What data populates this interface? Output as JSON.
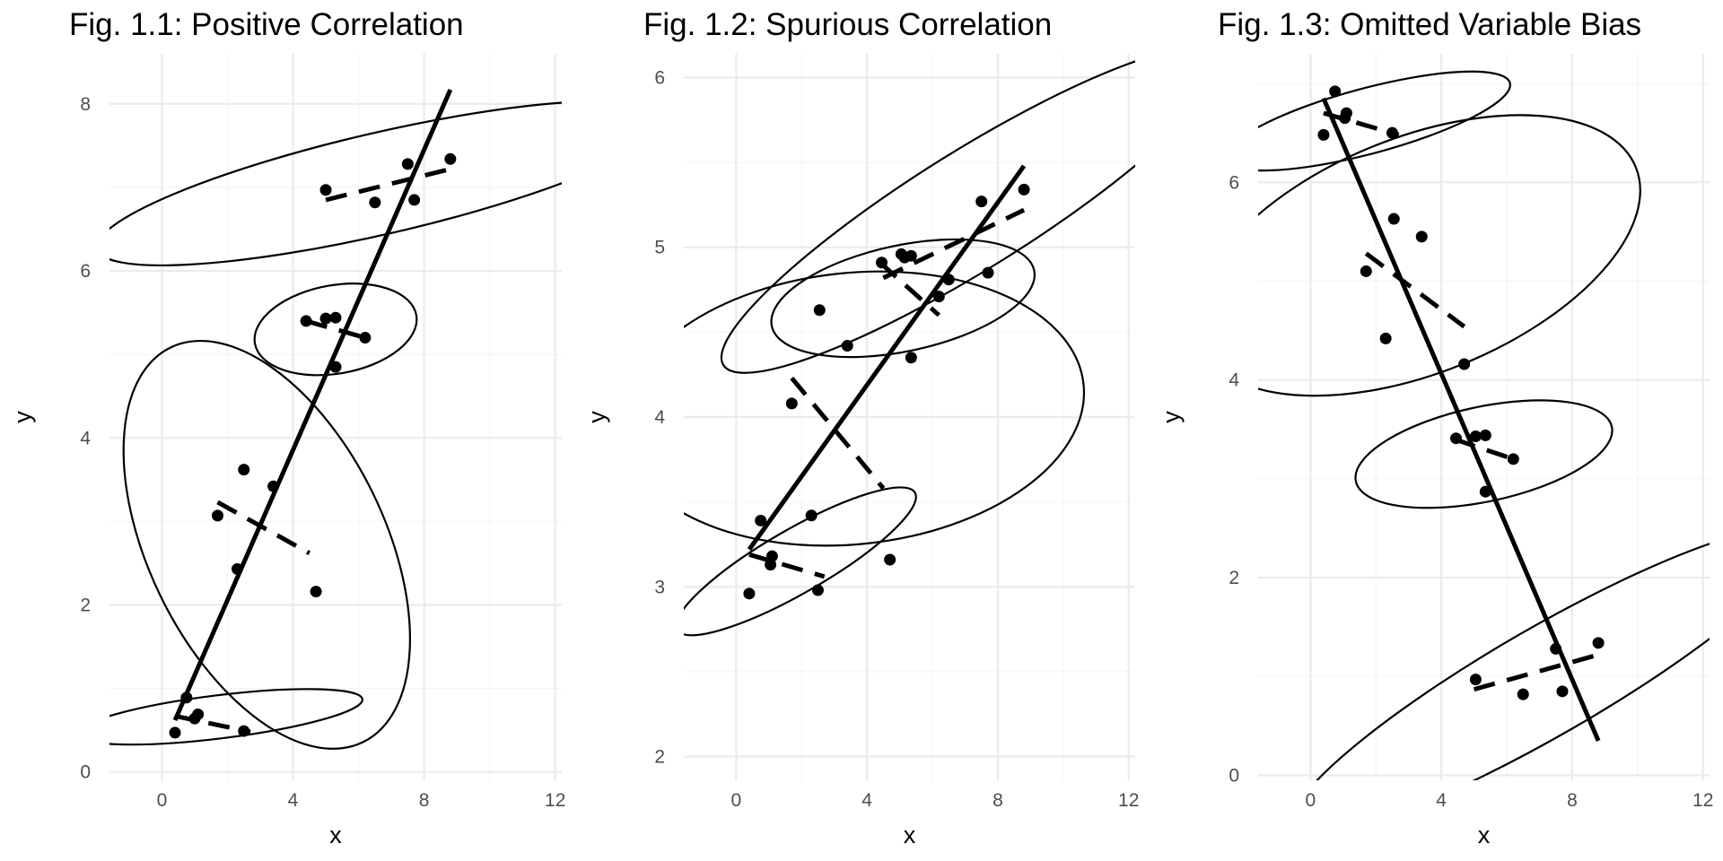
{
  "colors": {
    "ink": "#000000",
    "tick_text": "#4d4d4d",
    "grid_major": "#ebebeb",
    "grid_minor": "#f4f4f4",
    "background": "#ffffff"
  },
  "chart_data": [
    {
      "type": "scatter",
      "title": "Fig. 1.1: Positive Correlation",
      "xlabel": "x",
      "ylabel": "y",
      "xlim": [
        -1.6,
        12.2
      ],
      "ylim": [
        -0.1,
        8.6
      ],
      "xticks": [
        0,
        4,
        8,
        12
      ],
      "yticks": [
        0,
        2,
        4,
        6,
        8
      ],
      "grid": true,
      "points": [
        [
          0.4,
          0.47
        ],
        [
          0.75,
          0.89
        ],
        [
          1.1,
          0.69
        ],
        [
          1.0,
          0.64
        ],
        [
          2.5,
          0.49
        ],
        [
          1.7,
          3.07
        ],
        [
          2.3,
          2.43
        ],
        [
          2.5,
          3.62
        ],
        [
          3.4,
          3.42
        ],
        [
          4.7,
          2.16
        ],
        [
          4.4,
          5.4
        ],
        [
          5.0,
          5.43
        ],
        [
          5.3,
          5.44
        ],
        [
          5.3,
          4.85
        ],
        [
          6.2,
          5.2
        ],
        [
          5.0,
          6.97
        ],
        [
          6.5,
          6.82
        ],
        [
          7.5,
          7.28
        ],
        [
          7.7,
          6.85
        ],
        [
          8.8,
          7.34
        ]
      ],
      "fit_all": [
        [
          0.4,
          0.62
        ],
        [
          8.8,
          8.17
        ]
      ],
      "group_fits": [
        [
          [
            0.4,
            0.67
          ],
          [
            2.7,
            0.48
          ]
        ],
        [
          [
            1.7,
            3.23
          ],
          [
            4.5,
            2.62
          ]
        ],
        [
          [
            4.4,
            5.4
          ],
          [
            6.2,
            5.2
          ]
        ],
        [
          [
            5.0,
            6.85
          ],
          [
            8.8,
            7.22
          ]
        ]
      ],
      "ellipses": [
        {
          "cx": 1.75,
          "cy": 0.66,
          "rx": 4.4,
          "ry": 0.66,
          "angle": -7
        },
        {
          "cx": 3.2,
          "cy": 2.72,
          "rx": 3.6,
          "ry": 6.7,
          "angle": -26
        },
        {
          "cx": 5.3,
          "cy": 5.3,
          "rx": 2.5,
          "ry": 1.35,
          "angle": -10
        },
        {
          "cx": 6.7,
          "cy": 7.05,
          "rx": 8.9,
          "ry": 1.55,
          "angle": -13
        }
      ]
    },
    {
      "type": "scatter",
      "title": "Fig. 1.2: Spurious Correlation",
      "xlabel": "x",
      "ylabel": "y",
      "xlim": [
        -1.6,
        12.2
      ],
      "ylim": [
        1.86,
        6.14
      ],
      "xticks": [
        0,
        4,
        8,
        12
      ],
      "yticks": [
        2,
        3,
        4,
        5,
        6
      ],
      "grid": true,
      "points": [
        [
          0.4,
          2.96
        ],
        [
          0.75,
          3.39
        ],
        [
          1.1,
          3.18
        ],
        [
          1.05,
          3.13
        ],
        [
          2.5,
          2.98
        ],
        [
          1.7,
          4.08
        ],
        [
          2.3,
          3.42
        ],
        [
          2.55,
          4.63
        ],
        [
          3.4,
          4.42
        ],
        [
          4.7,
          3.16
        ],
        [
          4.45,
          4.91
        ],
        [
          5.05,
          4.96
        ],
        [
          5.15,
          4.94
        ],
        [
          5.35,
          4.95
        ],
        [
          5.35,
          4.35
        ],
        [
          6.2,
          4.71
        ],
        [
          6.5,
          4.81
        ],
        [
          7.5,
          5.27
        ],
        [
          7.7,
          4.85
        ],
        [
          8.8,
          5.34
        ]
      ],
      "fit_all": [
        [
          0.4,
          3.22
        ],
        [
          8.8,
          5.48
        ]
      ],
      "group_fits": [
        [
          [
            0.4,
            3.19
          ],
          [
            2.7,
            3.06
          ]
        ],
        [
          [
            1.7,
            4.23
          ],
          [
            4.5,
            3.58
          ]
        ],
        [
          [
            4.4,
            4.91
          ],
          [
            6.2,
            4.6
          ]
        ],
        [
          [
            4.5,
            4.82
          ],
          [
            8.8,
            5.22
          ]
        ]
      ],
      "ellipses": [
        {
          "cx": 1.83,
          "cy": 3.15,
          "rx": 4.2,
          "ry": 0.97,
          "angle": -30
        },
        {
          "cx": 3.56,
          "cy": 4.05,
          "rx": 7.1,
          "ry": 4.15,
          "angle": -6
        },
        {
          "cx": 5.1,
          "cy": 4.7,
          "rx": 4.1,
          "ry": 1.62,
          "angle": -12
        },
        {
          "cx": 7.2,
          "cy": 5.22,
          "rx": 8.95,
          "ry": 1.8,
          "angle": -32
        }
      ]
    },
    {
      "type": "scatter",
      "title": "Fig. 1.3: Omitted Variable Bias",
      "xlabel": "x",
      "ylabel": "y",
      "xlim": [
        -1.6,
        12.2
      ],
      "ylim": [
        -0.05,
        7.3
      ],
      "xticks": [
        0,
        4,
        8,
        12
      ],
      "yticks": [
        0,
        2,
        4,
        6
      ],
      "grid": true,
      "points": [
        [
          0.4,
          6.48
        ],
        [
          0.75,
          6.92
        ],
        [
          1.1,
          6.7
        ],
        [
          1.05,
          6.65
        ],
        [
          2.5,
          6.5
        ],
        [
          1.7,
          5.1
        ],
        [
          2.3,
          4.42
        ],
        [
          2.55,
          5.63
        ],
        [
          3.4,
          5.45
        ],
        [
          4.7,
          4.16
        ],
        [
          4.45,
          3.41
        ],
        [
          5.05,
          3.43
        ],
        [
          5.35,
          3.44
        ],
        [
          5.35,
          2.87
        ],
        [
          6.2,
          3.2
        ],
        [
          5.05,
          0.97
        ],
        [
          6.5,
          0.82
        ],
        [
          7.5,
          1.28
        ],
        [
          7.7,
          0.85
        ],
        [
          8.8,
          1.34
        ]
      ],
      "fit_all": [
        [
          0.4,
          6.85
        ],
        [
          8.8,
          0.35
        ]
      ],
      "group_fits": [
        [
          [
            0.4,
            6.7
          ],
          [
            2.7,
            6.48
          ]
        ],
        [
          [
            1.7,
            5.28
          ],
          [
            4.7,
            4.54
          ]
        ],
        [
          [
            4.4,
            3.4
          ],
          [
            6.2,
            3.2
          ]
        ],
        [
          [
            5.0,
            0.87
          ],
          [
            8.8,
            1.22
          ]
        ]
      ],
      "ellipses": [
        {
          "cx": 1.75,
          "cy": 6.62,
          "rx": 4.5,
          "ry": 1.0,
          "angle": -15
        },
        {
          "cx": 3.27,
          "cy": 5.26,
          "rx": 7.2,
          "ry": 3.6,
          "angle": -22
        },
        {
          "cx": 5.3,
          "cy": 3.25,
          "rx": 4.0,
          "ry": 1.45,
          "angle": -12
        },
        {
          "cx": 7.2,
          "cy": 0.95,
          "rx": 8.95,
          "ry": 1.65,
          "angle": -30
        }
      ]
    }
  ]
}
